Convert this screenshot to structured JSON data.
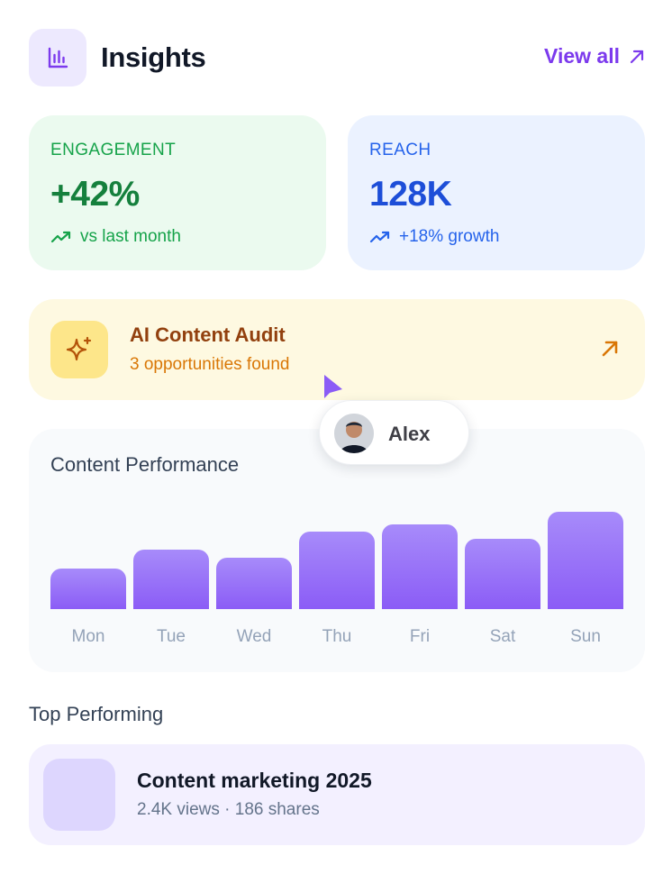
{
  "header": {
    "title": "Insights",
    "view_all": "View all",
    "icon": "bar-chart-icon",
    "accent": "#7C3AED"
  },
  "stats": [
    {
      "label": "ENGAGEMENT",
      "value": "+42%",
      "sub": "vs last month",
      "icon": "trending-up-icon",
      "color": "#16A34A"
    },
    {
      "label": "REACH",
      "value": "128K",
      "sub": "+18% growth",
      "icon": "trending-up-icon",
      "color": "#2563EB"
    }
  ],
  "audit": {
    "title": "AI Content Audit",
    "subtitle": "3 opportunities found",
    "icon": "sparkle-icon",
    "color": "#D97706"
  },
  "collaborator": {
    "name": "Alex"
  },
  "chart_data": {
    "type": "bar",
    "title": "Content Performance",
    "categories": [
      "Mon",
      "Tue",
      "Wed",
      "Thu",
      "Fri",
      "Sat",
      "Sun"
    ],
    "values": [
      45,
      67,
      58,
      87,
      95,
      79,
      109
    ],
    "ylim": [
      0,
      110
    ],
    "xlabel": "",
    "ylabel": "",
    "grid": false
  },
  "top_performing": {
    "title": "Top Performing",
    "items": [
      {
        "name": "Content marketing 2025",
        "meta": "2.4K views · 186 shares"
      }
    ]
  }
}
